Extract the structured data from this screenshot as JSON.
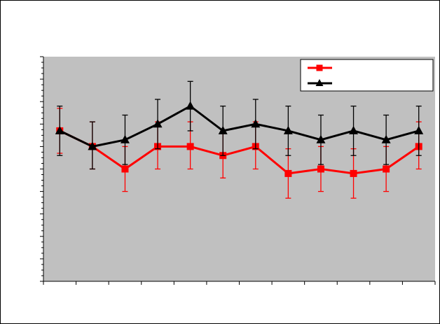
{
  "chart_data": {
    "type": "line",
    "title": "",
    "xlabel": "",
    "ylabel": "",
    "x": [
      1,
      2,
      3,
      4,
      5,
      6,
      7,
      8,
      9,
      10,
      11,
      12
    ],
    "ylim": [
      0,
      10
    ],
    "plot_area_color": "#c0c0c0",
    "grid": false,
    "legend_position": "top-right",
    "series": [
      {
        "color": "#ff0000",
        "marker": "square",
        "values": [
          6.7,
          6.0,
          5.0,
          6.0,
          6.0,
          5.6,
          6.0,
          4.8,
          5.0,
          4.8,
          5.0,
          6.0
        ],
        "error_minus": [
          1.0,
          1.0,
          1.0,
          1.0,
          1.0,
          1.0,
          1.0,
          1.1,
          1.0,
          1.1,
          1.0,
          1.0
        ],
        "error_plus": [
          1.0,
          1.1,
          1.0,
          1.1,
          1.1,
          1.0,
          1.1,
          1.1,
          1.0,
          1.1,
          1.0,
          1.1
        ]
      },
      {
        "color": "#000000",
        "marker": "triangle",
        "values": [
          6.7,
          6.0,
          6.3,
          7.0,
          7.8,
          6.7,
          7.0,
          6.7,
          6.3,
          6.7,
          6.3,
          6.7
        ],
        "error_minus": [
          1.1,
          1.0,
          1.1,
          1.1,
          1.1,
          1.1,
          1.1,
          1.1,
          1.1,
          1.1,
          1.1,
          1.1
        ],
        "error_plus": [
          1.1,
          1.1,
          1.1,
          1.1,
          1.1,
          1.1,
          1.1,
          1.1,
          1.1,
          1.1,
          1.1,
          1.1
        ]
      }
    ]
  }
}
